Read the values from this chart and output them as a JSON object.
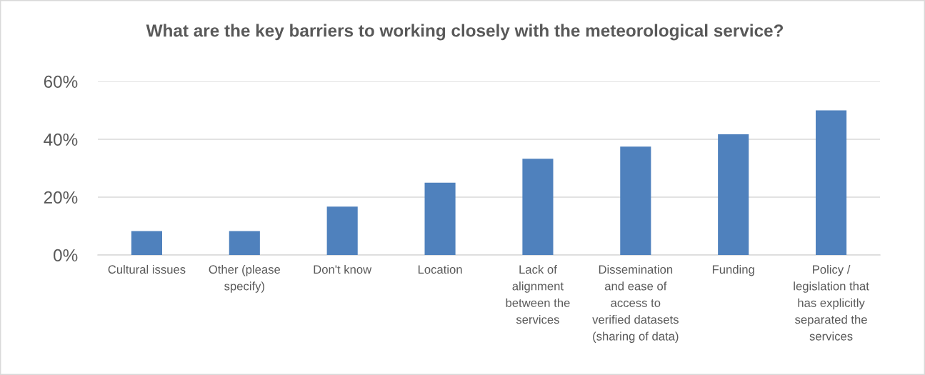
{
  "chart_data": {
    "type": "bar",
    "title": "What are the key barriers to working closely with the meteorological service?",
    "categories": [
      "Cultural issues",
      "Other (please specify)",
      "Don't know",
      "Location",
      "Lack of alignment between the services",
      "Dissemination and ease of access to verified datasets (sharing of data)",
      "Funding",
      "Policy / legislation that has explicitly separated the services"
    ],
    "values": [
      8.3,
      8.3,
      16.7,
      25,
      33.3,
      37.5,
      41.7,
      50
    ],
    "color": "#4f81bd",
    "ylim": [
      0,
      60
    ],
    "yticks": [
      {
        "value": 0,
        "label": "0%"
      },
      {
        "value": 20,
        "label": "20%"
      },
      {
        "value": 40,
        "label": "40%"
      },
      {
        "value": 60,
        "label": "60%"
      }
    ],
    "grid": "y"
  }
}
